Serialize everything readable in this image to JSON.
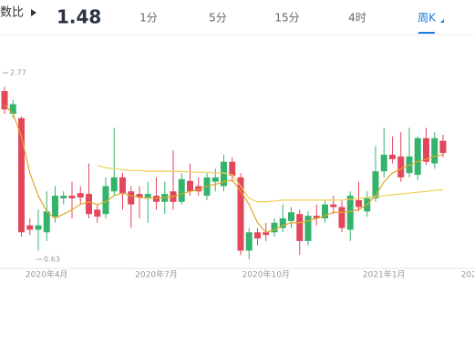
{
  "header": {
    "label": "数比",
    "value": "1.48",
    "tabs": [
      "1分",
      "5分",
      "15分",
      "4时",
      "周K"
    ],
    "active_tab": 4
  },
  "chart_data": {
    "type": "candlestick",
    "categories": [
      null,
      null,
      null,
      null,
      null,
      "2020年4月",
      null,
      null,
      null,
      null,
      null,
      null,
      null,
      null,
      null,
      null,
      null,
      null,
      "2020年7月",
      null,
      null,
      null,
      null,
      null,
      null,
      null,
      null,
      null,
      null,
      null,
      null,
      "2020年10月",
      null,
      null,
      null,
      null,
      null,
      null,
      null,
      null,
      null,
      null,
      null,
      null,
      null,
      "2021年1月",
      null,
      null,
      null,
      null,
      null,
      null,
      null,
      null,
      null,
      "202"
    ],
    "open": [
      2.56,
      2.3,
      2.25,
      1.02,
      0.97,
      0.94,
      1.12,
      1.33,
      1.36,
      1.39,
      1.38,
      1.2,
      1.15,
      1.41,
      1.57,
      1.41,
      1.38,
      1.34,
      1.36,
      1.29,
      1.41,
      1.29,
      1.53,
      1.47,
      1.36,
      1.52,
      1.47,
      1.75,
      1.57,
      0.73,
      0.94,
      0.94,
      0.94,
      0.99,
      1.07,
      1.15,
      0.84,
      1.13,
      1.1,
      1.26,
      1.23,
      0.97,
      1.31,
      1.18,
      1.33,
      1.64,
      1.83,
      1.81,
      1.62,
      1.6,
      2.02,
      1.73,
      1.99,
      null,
      null,
      null
    ],
    "high": [
      2.61,
      2.46,
      2.27,
      1.1,
      1.2,
      1.41,
      1.47,
      1.41,
      1.52,
      1.47,
      1.73,
      1.26,
      1.57,
      2.14,
      1.62,
      1.47,
      1.47,
      1.52,
      1.57,
      1.52,
      1.88,
      1.62,
      1.73,
      1.57,
      1.62,
      1.67,
      1.83,
      1.8,
      1.62,
      0.99,
      0.99,
      1.05,
      1.1,
      1.26,
      1.23,
      1.2,
      1.18,
      1.26,
      1.31,
      1.36,
      1.31,
      1.41,
      1.52,
      1.41,
      1.93,
      2.14,
      2.04,
      2.09,
      2.14,
      2.04,
      2.14,
      2.09,
      2.06,
      null,
      null,
      null
    ],
    "low": [
      2.3,
      2.25,
      0.89,
      0.91,
      0.73,
      0.84,
      1.05,
      1.26,
      1.1,
      1.26,
      1.1,
      1.05,
      1.1,
      1.36,
      1.2,
      0.99,
      1.1,
      1.05,
      1.2,
      1.15,
      1.2,
      1.26,
      1.36,
      1.36,
      1.31,
      1.41,
      1.41,
      1.52,
      0.68,
      0.63,
      0.79,
      0.84,
      0.89,
      0.94,
      0.99,
      0.68,
      0.79,
      1.02,
      1.05,
      1.15,
      0.94,
      0.84,
      1.18,
      1.12,
      1.29,
      1.57,
      1.73,
      1.52,
      1.57,
      1.54,
      1.71,
      1.67,
      1.8,
      null,
      null,
      null
    ],
    "close": [
      2.35,
      2.41,
      0.94,
      0.97,
      1.02,
      1.18,
      1.36,
      1.36,
      1.33,
      1.34,
      1.15,
      1.12,
      1.47,
      1.57,
      1.39,
      1.26,
      1.34,
      1.38,
      1.29,
      1.38,
      1.29,
      1.55,
      1.41,
      1.41,
      1.57,
      1.57,
      1.75,
      1.59,
      0.73,
      0.94,
      0.87,
      0.91,
      1.05,
      1.1,
      1.17,
      0.84,
      1.13,
      1.1,
      1.26,
      1.23,
      0.99,
      1.36,
      1.23,
      1.33,
      1.64,
      1.83,
      1.78,
      1.57,
      1.81,
      2.02,
      1.75,
      2.02,
      1.85,
      null,
      null,
      null
    ],
    "up_color": "#34b36b",
    "down_color": "#e2475b",
    "ma_series": [
      {
        "color": "#e0a92a",
        "values": [
          2.4,
          2.3,
          2.04,
          1.62,
          1.36,
          1.18,
          1.1,
          1.15,
          1.2,
          1.26,
          1.29,
          1.26,
          1.29,
          1.36,
          1.39,
          1.36,
          1.34,
          1.33,
          1.33,
          1.34,
          1.35,
          1.38,
          1.41,
          1.43,
          1.47,
          1.49,
          1.52,
          1.54,
          1.41,
          1.26,
          1.05,
          0.94,
          0.97,
          1.02,
          1.05,
          1.05,
          1.07,
          1.1,
          1.13,
          1.17,
          1.17,
          1.18,
          1.2,
          1.26,
          1.36,
          1.52,
          1.62,
          1.67,
          1.71,
          1.75,
          1.78,
          1.81,
          1.83,
          null,
          null,
          null
        ]
      },
      {
        "color": "#f0cf5a",
        "values": [
          null,
          null,
          null,
          null,
          null,
          null,
          null,
          null,
          null,
          null,
          null,
          1.71,
          1.68,
          1.67,
          1.66,
          1.65,
          1.65,
          1.64,
          1.64,
          1.64,
          1.64,
          1.64,
          1.63,
          1.63,
          1.63,
          1.62,
          1.62,
          1.6,
          1.47,
          1.33,
          1.29,
          1.29,
          1.3,
          1.31,
          1.31,
          1.31,
          1.31,
          1.31,
          1.31,
          1.31,
          1.31,
          1.32,
          1.33,
          1.34,
          1.35,
          1.36,
          1.37,
          1.38,
          1.39,
          1.4,
          1.41,
          1.42,
          1.43,
          null,
          null,
          null
        ]
      }
    ],
    "ylim": [
      0.63,
      2.77
    ],
    "yticks": [
      0.63,
      2.77
    ],
    "grid": false
  }
}
